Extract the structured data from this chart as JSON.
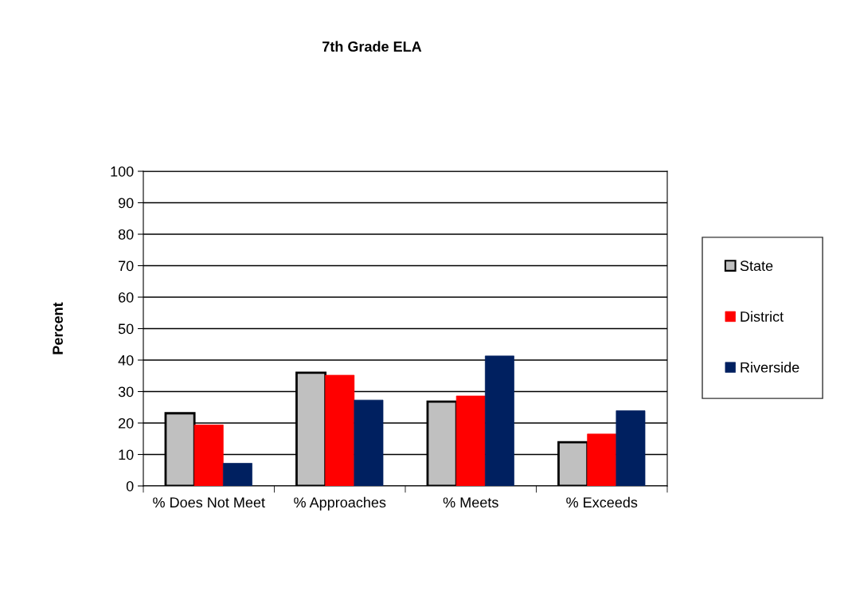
{
  "chart_data": {
    "type": "bar",
    "title": "7th Grade ELA",
    "ylabel": "Percent",
    "categories": [
      "% Does Not Meet",
      "% Approaches",
      "% Meets",
      "% Exceeds"
    ],
    "series": [
      {
        "name": "State",
        "color": "#c0c0c0",
        "values": [
          23.1,
          36.0,
          26.8,
          13.9
        ]
      },
      {
        "name": "District",
        "color": "#ff0000",
        "values": [
          19.4,
          35.2,
          28.6,
          16.5
        ]
      },
      {
        "name": "Riverside",
        "color": "#002060",
        "values": [
          7.2,
          27.3,
          41.3,
          23.9
        ]
      }
    ],
    "ylim": [
      0,
      100
    ],
    "yticks": [
      0,
      10,
      20,
      30,
      40,
      50,
      60,
      70,
      80,
      90,
      100
    ],
    "grid": "y",
    "legend": "right"
  }
}
